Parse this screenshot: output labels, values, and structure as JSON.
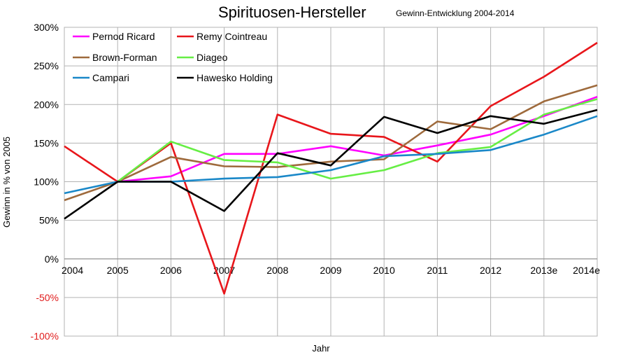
{
  "chart_data": {
    "type": "line",
    "title": "Spirituosen-Hersteller",
    "subtitle": "Gewinn-Entwicklung 2004-2014",
    "xlabel": "Jahr",
    "ylabel": "Gewinn in % von 2005",
    "categories": [
      "2004",
      "2005",
      "2006",
      "2007",
      "2008",
      "2009",
      "2010",
      "2011",
      "2012",
      "2013e",
      "2014e"
    ],
    "ylim": [
      -100,
      300
    ],
    "yticks": [
      300,
      250,
      200,
      150,
      100,
      50,
      0,
      -50,
      -100
    ],
    "ytick_labels": [
      "300%",
      "250%",
      "200%",
      "150%",
      "100%",
      "50%",
      "0%",
      "-50%",
      "-100%"
    ],
    "negative_tick_color": "#e01c1c",
    "grid": true,
    "legend_position": "top-left",
    "series": [
      {
        "name": "Pernod Ricard",
        "color": "#ff00ff",
        "values": [
          null,
          100,
          107,
          136,
          136,
          146,
          134,
          147,
          161,
          185,
          210
        ]
      },
      {
        "name": "Remy Cointreau",
        "color": "#e8161b",
        "values": [
          146,
          100,
          150,
          -45,
          187,
          162,
          158,
          126,
          198,
          236,
          280
        ]
      },
      {
        "name": "Brown-Forman",
        "color": "#9e6a3c",
        "values": [
          76,
          100,
          132,
          120,
          119,
          126,
          129,
          178,
          168,
          204,
          225
        ]
      },
      {
        "name": "Diageo",
        "color": "#66ee44",
        "values": [
          null,
          100,
          152,
          128,
          125,
          104,
          115,
          137,
          145,
          187,
          207
        ]
      },
      {
        "name": "Campari",
        "color": "#1a88c8",
        "values": [
          85,
          100,
          100,
          104,
          106,
          115,
          133,
          136,
          141,
          161,
          185
        ]
      },
      {
        "name": "Hawesko Holding",
        "color": "#000000",
        "values": [
          52,
          100,
          100,
          62,
          137,
          121,
          184,
          163,
          185,
          175,
          193
        ]
      }
    ]
  }
}
